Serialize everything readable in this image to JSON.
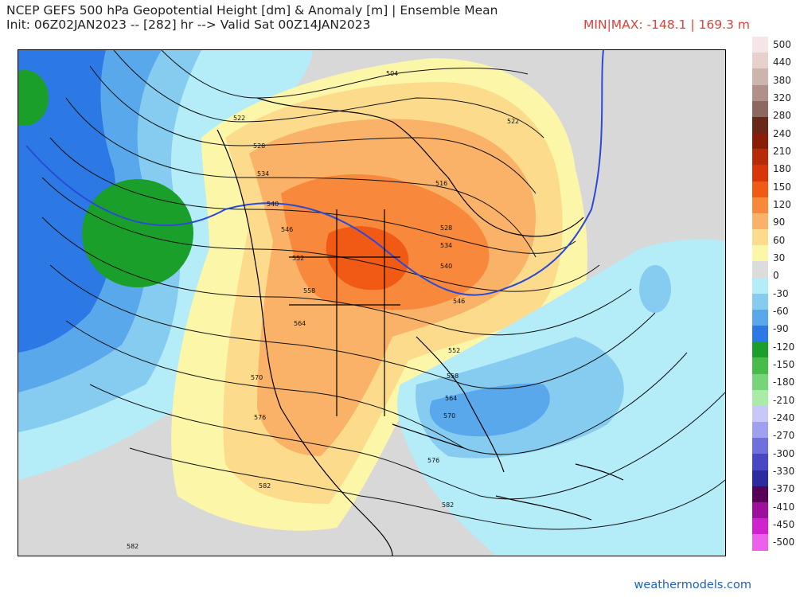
{
  "header": {
    "title": "NCEP GEFS 500 hPa Geopotential Height [dm] & Anomaly [m] | Ensemble Mean",
    "subtitle": "Init: 06Z02JAN2023 -- [282] hr --> Valid Sat 00Z14JAN2023",
    "minmax": "MIN|MAX: -148.1 | 169.3 m"
  },
  "footer": {
    "credit": "weathermodels.com"
  },
  "colorbar": {
    "labels": [
      "500",
      "440",
      "380",
      "320",
      "280",
      "240",
      "210",
      "180",
      "150",
      "120",
      "90",
      "60",
      "30",
      "0",
      "-30",
      "-60",
      "-90",
      "-120",
      "-150",
      "-180",
      "-210",
      "-240",
      "-270",
      "-300",
      "-330",
      "-370",
      "-410",
      "-450",
      "-500"
    ],
    "colors": [
      "#f4e6e6",
      "#e8d0cc",
      "#cdb5ae",
      "#b09088",
      "#8c6860",
      "#6a2818",
      "#8a1c08",
      "#b82a08",
      "#d83608",
      "#f05a14",
      "#f8883c",
      "#fab268",
      "#fcdc8c",
      "#fcf7a8",
      "#dcdcdc",
      "#b4ecf8",
      "#86ccf0",
      "#5aa8ec",
      "#2c78e4",
      "#1aa02a",
      "#48bc48",
      "#78d478",
      "#a8eca8",
      "#c8c8f8",
      "#a0a0f0",
      "#7070dc",
      "#4848c4",
      "#2c2ca0",
      "#580058",
      "#9c109c",
      "#d020d0",
      "#ec60ec"
    ]
  },
  "contour_labels": [
    "522",
    "528",
    "534",
    "540",
    "546",
    "552",
    "558",
    "564",
    "570",
    "576",
    "582",
    "582",
    "582",
    "504",
    "516",
    "522",
    "528",
    "534",
    "540",
    "546",
    "552",
    "558",
    "564",
    "570",
    "576"
  ]
}
